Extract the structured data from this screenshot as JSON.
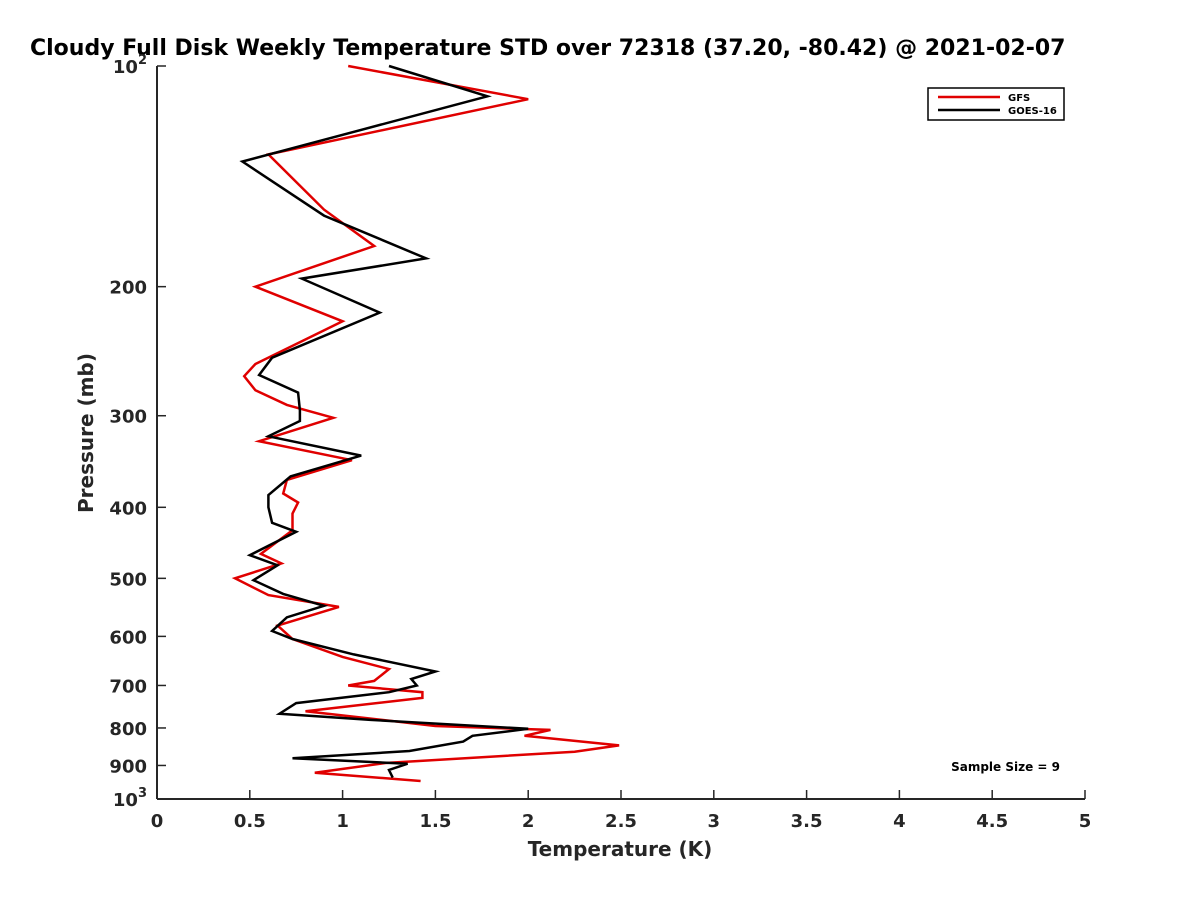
{
  "chart_data": {
    "type": "line",
    "title": "Cloudy Full Disk Weekly Temperature STD over 72318 (37.20, -80.42) @ 2021-02-07",
    "xlabel": "Temperature (K)",
    "ylabel": "Pressure (mb)",
    "xlim": [
      0,
      5
    ],
    "ylim": [
      100,
      1000
    ],
    "yscale": "log",
    "y_reversed": true,
    "x_ticks": [
      {
        "value": 0,
        "label": "0"
      },
      {
        "value": 0.5,
        "label": "0.5"
      },
      {
        "value": 1,
        "label": "1"
      },
      {
        "value": 1.5,
        "label": "1.5"
      },
      {
        "value": 2,
        "label": "2"
      },
      {
        "value": 2.5,
        "label": "2.5"
      },
      {
        "value": 3,
        "label": "3"
      },
      {
        "value": 3.5,
        "label": "3.5"
      },
      {
        "value": 4,
        "label": "4"
      },
      {
        "value": 4.5,
        "label": "4.5"
      },
      {
        "value": 5,
        "label": "5"
      }
    ],
    "y_ticks": [
      {
        "value": 100,
        "base": "10",
        "exp": "2"
      },
      {
        "value": 200,
        "label": "200"
      },
      {
        "value": 300,
        "label": "300"
      },
      {
        "value": 400,
        "label": "400"
      },
      {
        "value": 500,
        "label": "500"
      },
      {
        "value": 600,
        "label": "600"
      },
      {
        "value": 700,
        "label": "700"
      },
      {
        "value": 800,
        "label": "800"
      },
      {
        "value": 900,
        "label": "900"
      },
      {
        "value": 1000,
        "base": "10",
        "exp": "3"
      }
    ],
    "legend_position": "top-right",
    "annotation": "Sample Size = 9",
    "series": [
      {
        "name": "GFS",
        "color": "#e00000",
        "x": [
          1.03,
          2.0,
          0.6,
          0.9,
          1.17,
          0.53,
          1.0,
          0.53,
          0.47,
          0.53,
          0.7,
          0.95,
          0.55,
          1.05,
          0.7,
          0.68,
          0.76,
          0.73,
          0.73,
          0.56,
          0.67,
          0.42,
          0.6,
          0.98,
          0.65,
          0.73,
          1.0,
          1.25,
          1.17,
          1.03,
          1.43,
          1.43,
          0.8,
          1.5,
          2.12,
          1.98,
          2.49,
          2.25,
          1.23,
          0.85,
          1.42
        ],
        "y": [
          100,
          111,
          132,
          157,
          176,
          200,
          223,
          255,
          265,
          277,
          290,
          302,
          325,
          345,
          367,
          383,
          394,
          408,
          430,
          463,
          477,
          500,
          527,
          547,
          580,
          605,
          640,
          665,
          690,
          700,
          715,
          728,
          759,
          795,
          805,
          820,
          845,
          862,
          893,
          921,
          945
        ]
      },
      {
        "name": "GOES-16",
        "color": "#000000",
        "x": [
          1.25,
          1.78,
          0.46,
          0.9,
          1.45,
          0.78,
          1.2,
          0.62,
          0.55,
          0.76,
          0.77,
          0.77,
          0.6,
          1.1,
          0.72,
          0.6,
          0.6,
          0.62,
          0.75,
          0.5,
          0.65,
          0.52,
          0.68,
          0.9,
          0.7,
          0.62,
          0.73,
          1.06,
          1.5,
          1.37,
          1.4,
          1.25,
          0.75,
          0.66,
          1.15,
          2.0,
          1.7,
          1.65,
          1.36,
          0.73,
          1.35,
          1.25,
          1.27
        ],
        "y": [
          100,
          110,
          135,
          160,
          183,
          195,
          217,
          250,
          264,
          279,
          295,
          305,
          320,
          340,
          363,
          385,
          400,
          420,
          432,
          465,
          480,
          503,
          525,
          545,
          565,
          590,
          605,
          635,
          670,
          686,
          700,
          715,
          740,
          765,
          780,
          802,
          820,
          835,
          860,
          880,
          895,
          913,
          935
        ]
      }
    ]
  }
}
